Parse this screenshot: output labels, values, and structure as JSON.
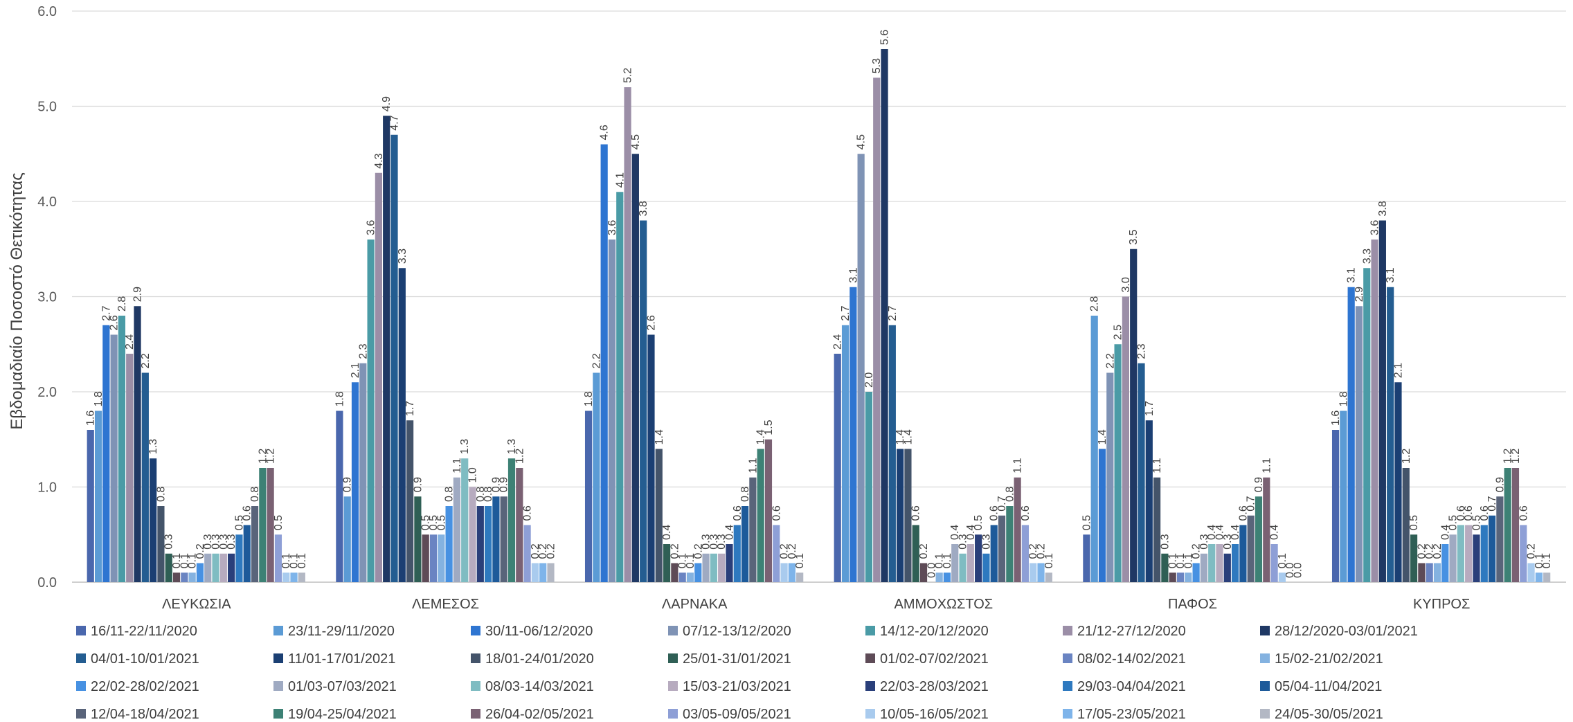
{
  "chart_data": {
    "type": "bar",
    "title": "",
    "xlabel": "",
    "ylabel": "Εβδομαδιαίο Ποσοστό Θετικότητας",
    "ylim": [
      0,
      6
    ],
    "yticks": [
      "0.0",
      "1.0",
      "2.0",
      "3.0",
      "4.0",
      "5.0",
      "6.0"
    ],
    "grid": true,
    "legend_position": "bottom",
    "categories": [
      "ΛΕΥΚΩΣΙΑ",
      "ΛΕΜΕΣΟΣ",
      "ΛΑΡΝΑΚΑ",
      "ΑΜΜΟΧΩΣΤΟΣ",
      "ΠΑΦΟΣ",
      "ΚΥΠΡΟΣ"
    ],
    "series": [
      {
        "name": "16/11-22/11/2020",
        "color": "#4a67ad",
        "values": [
          1.6,
          1.8,
          1.8,
          2.4,
          0.5,
          1.6
        ],
        "labels": [
          "1.6",
          "1.8",
          "1.8",
          "2.4",
          "0.5",
          "1.6"
        ]
      },
      {
        "name": "23/11-29/11/2020",
        "color": "#5b9bd5",
        "values": [
          1.8,
          0.9,
          2.2,
          2.7,
          2.8,
          1.8
        ],
        "labels": [
          "1.8",
          "0.9",
          "2.2",
          "2.7",
          "2.8",
          "1.8"
        ]
      },
      {
        "name": "30/11-06/12/2020",
        "color": "#2e75d1",
        "values": [
          2.7,
          2.1,
          4.6,
          3.1,
          1.4,
          3.1
        ],
        "labels": [
          "2.7",
          "2.1",
          "4.6",
          "3.1",
          "1.4",
          "3.1"
        ]
      },
      {
        "name": "07/12-13/12/2020",
        "color": "#7f93b5",
        "values": [
          2.6,
          2.3,
          3.6,
          4.5,
          2.2,
          2.9
        ],
        "labels": [
          "2.6",
          "2.3",
          "3.6",
          "4.5",
          "2.2",
          "2.9"
        ]
      },
      {
        "name": "14/12-20/12/2020",
        "color": "#4a9ba6",
        "values": [
          2.8,
          3.6,
          4.1,
          2.0,
          2.5,
          3.3
        ],
        "labels": [
          "2.8",
          "3.6",
          "4.1",
          "2.0",
          "2.5",
          "3.3"
        ]
      },
      {
        "name": "21/12-27/12/2020",
        "color": "#9b8ea7",
        "values": [
          2.4,
          4.3,
          5.2,
          5.3,
          3.0,
          3.6
        ],
        "labels": [
          "2.4",
          "4.3",
          "5.2",
          "5.3",
          "3.0",
          "3.6"
        ]
      },
      {
        "name": "28/12/2020-03/01/2021",
        "color": "#1f3864",
        "values": [
          2.9,
          4.9,
          4.5,
          5.6,
          3.5,
          3.8
        ],
        "labels": [
          "2.9",
          "4.9",
          "4.5",
          "5.6",
          "3.5",
          "3.8"
        ]
      },
      {
        "name": "04/01-10/01/2021",
        "color": "#245d91",
        "values": [
          2.2,
          4.7,
          3.8,
          2.7,
          2.3,
          3.1
        ],
        "labels": [
          "2.2",
          "4.7",
          "3.8",
          "2.7",
          "2.3",
          "3.1"
        ]
      },
      {
        "name": "11/01-17/01/2021",
        "color": "#1b3f73",
        "values": [
          1.3,
          3.3,
          2.6,
          1.4,
          1.7,
          2.1
        ],
        "labels": [
          "1.3",
          "3.3",
          "2.6",
          "1.4",
          "1.7",
          "2.1"
        ]
      },
      {
        "name": "18/01-24/01/2020",
        "color": "#44546a",
        "values": [
          0.8,
          1.7,
          1.4,
          1.4,
          1.1,
          1.2
        ],
        "labels": [
          "0.8",
          "1.7",
          "1.4",
          "1.4",
          "1.1",
          "1.2"
        ]
      },
      {
        "name": "25/01-31/01/2021",
        "color": "#2f5f55",
        "values": [
          0.3,
          0.9,
          0.4,
          0.6,
          0.3,
          0.5
        ],
        "labels": [
          "0.3",
          "0.9",
          "0.4",
          "0.6",
          "0.3",
          "0.5"
        ]
      },
      {
        "name": "01/02-07/02/2021",
        "color": "#5e4b57",
        "values": [
          0.1,
          0.5,
          0.2,
          0.2,
          0.1,
          0.2
        ],
        "labels": [
          "0.1",
          "0.5",
          "0.2",
          "0.2",
          "0.1",
          "0.2"
        ]
      },
      {
        "name": "08/02-14/02/2021",
        "color": "#6a84c2",
        "values": [
          0.1,
          0.5,
          0.1,
          0.0,
          0.1,
          0.2
        ],
        "labels": [
          "0.1",
          "0.5",
          "0.1",
          "0.0",
          "0.1",
          "0.2"
        ]
      },
      {
        "name": "15/02-21/02/2021",
        "color": "#84b2e0",
        "values": [
          0.1,
          0.5,
          0.1,
          0.1,
          0.1,
          0.2
        ],
        "labels": [
          "0.1",
          "0.5",
          "0.1",
          "0.1",
          "0.1",
          "0.2"
        ]
      },
      {
        "name": "22/02-28/02/2021",
        "color": "#4791e2",
        "values": [
          0.2,
          0.8,
          0.2,
          0.1,
          0.2,
          0.4
        ],
        "labels": [
          "0.2",
          "0.8",
          "0.2",
          "0.1",
          "0.2",
          "0.4"
        ]
      },
      {
        "name": "01/03-07/03/2021",
        "color": "#9faac2",
        "values": [
          0.3,
          1.1,
          0.3,
          0.4,
          0.3,
          0.5
        ],
        "labels": [
          "0.3",
          "1.1",
          "0.3",
          "0.4",
          "0.3",
          "0.5"
        ]
      },
      {
        "name": "08/03-14/03/2021",
        "color": "#7fbcc2",
        "values": [
          0.3,
          1.3,
          0.3,
          0.3,
          0.4,
          0.6
        ],
        "labels": [
          "0.3",
          "1.3",
          "0.3",
          "0.3",
          "0.4",
          "0.6"
        ]
      },
      {
        "name": "15/03-21/03/2021",
        "color": "#b7abbf",
        "values": [
          0.3,
          1.0,
          0.3,
          0.4,
          0.4,
          0.6
        ],
        "labels": [
          "0.3",
          "1.0",
          "0.3",
          "0.4",
          "0.4",
          "0.6"
        ]
      },
      {
        "name": "22/03-28/03/2021",
        "color": "#2a3f7a",
        "values": [
          0.3,
          0.8,
          0.4,
          0.5,
          0.3,
          0.5
        ],
        "labels": [
          "0.3",
          "0.8",
          "0.4",
          "0.5",
          "0.3",
          "0.5"
        ]
      },
      {
        "name": "29/03-04/04/2021",
        "color": "#2e79bf",
        "values": [
          0.5,
          0.8,
          0.6,
          0.3,
          0.4,
          0.6
        ],
        "labels": [
          "0.5",
          "0.8",
          "0.6",
          "0.3",
          "0.4",
          "0.6"
        ]
      },
      {
        "name": "05/04-11/04/2021",
        "color": "#1d5a9a",
        "values": [
          0.6,
          0.9,
          0.8,
          0.6,
          0.6,
          0.7
        ],
        "labels": [
          "0.6",
          "0.9",
          "0.8",
          "0.6",
          "0.6",
          "0.7"
        ]
      },
      {
        "name": "12/04-18/04/2021",
        "color": "#59647a",
        "values": [
          0.8,
          0.9,
          1.1,
          0.7,
          0.7,
          0.9
        ],
        "labels": [
          "0.8",
          "0.9",
          "1.1",
          "0.7",
          "0.7",
          "0.9"
        ]
      },
      {
        "name": "19/04-25/04/2021",
        "color": "#3d8175",
        "values": [
          1.2,
          1.3,
          1.4,
          0.8,
          0.9,
          1.2
        ],
        "labels": [
          "1.2",
          "1.3",
          "1.4",
          "0.8",
          "0.9",
          "1.2"
        ]
      },
      {
        "name": "26/04-02/05/2021",
        "color": "#7a6173",
        "values": [
          1.2,
          1.2,
          1.5,
          1.1,
          1.1,
          1.2
        ],
        "labels": [
          "1.2",
          "1.2",
          "1.5",
          "1.1",
          "1.1",
          "1.2"
        ]
      },
      {
        "name": "03/05-09/05/2021",
        "color": "#8e9fd6",
        "values": [
          0.5,
          0.6,
          0.6,
          0.6,
          0.4,
          0.6
        ],
        "labels": [
          "0.5",
          "0.6",
          "0.6",
          "0.6",
          "0.4",
          "0.6"
        ]
      },
      {
        "name": "10/05-16/05/2021",
        "color": "#a9cbee",
        "values": [
          0.1,
          0.2,
          0.2,
          0.2,
          0.1,
          0.2
        ],
        "labels": [
          "0.1",
          "0.2",
          "0.2",
          "0.2",
          "0.1",
          "0.2"
        ]
      },
      {
        "name": "17/05-23/05/2021",
        "color": "#7eb4ea",
        "values": [
          0.1,
          0.2,
          0.2,
          0.2,
          0.0,
          0.1
        ],
        "labels": [
          "0.1",
          "0.2",
          "0.2",
          "0.2",
          "0.0",
          "0.1"
        ]
      },
      {
        "name": "24/05-30/05/2021",
        "color": "#b3b8c4",
        "values": [
          0.1,
          0.2,
          0.1,
          0.1,
          0.0,
          0.1
        ],
        "labels": [
          "0.1",
          "0.2",
          "0.1",
          "0.1",
          "0.0",
          "0.1"
        ]
      }
    ]
  }
}
